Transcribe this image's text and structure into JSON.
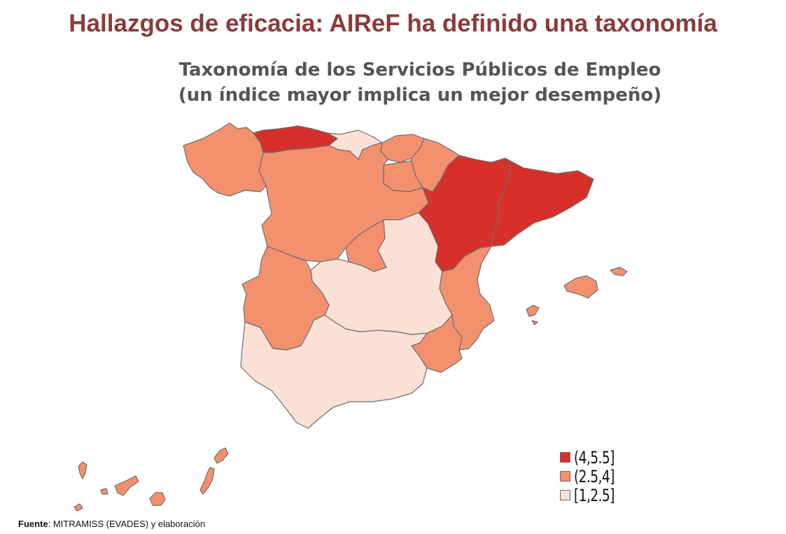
{
  "slide": {
    "title": "Hallazgos de eficacia: AIReF ha definido una taxonomía"
  },
  "map": {
    "title_line1": "Taxonomía de los Servicios Públicos de Empleo",
    "title_line2": "(un índice mayor implica un mejor desempeño)",
    "colors": {
      "high": "#d7302a",
      "mid": "#f3916e",
      "low": "#fbe0d6"
    },
    "regions": [
      {
        "name": "Galicia",
        "class": "mid"
      },
      {
        "name": "Asturias",
        "class": "high"
      },
      {
        "name": "Cantabria",
        "class": "low"
      },
      {
        "name": "País Vasco",
        "class": "mid"
      },
      {
        "name": "Navarra",
        "class": "mid"
      },
      {
        "name": "La Rioja",
        "class": "mid"
      },
      {
        "name": "Aragón",
        "class": "high"
      },
      {
        "name": "Cataluña",
        "class": "high"
      },
      {
        "name": "Castilla y León",
        "class": "mid"
      },
      {
        "name": "Madrid",
        "class": "mid"
      },
      {
        "name": "Castilla-La Mancha",
        "class": "low"
      },
      {
        "name": "Extremadura",
        "class": "mid"
      },
      {
        "name": "Comunidad Valenciana",
        "class": "mid"
      },
      {
        "name": "Región de Murcia",
        "class": "mid"
      },
      {
        "name": "Andalucía",
        "class": "low"
      },
      {
        "name": "Illes Balears",
        "class": "mid"
      },
      {
        "name": "Canarias",
        "class": "mid"
      }
    ]
  },
  "legend": {
    "items": [
      {
        "label": "(4,5.5]",
        "class": "high"
      },
      {
        "label": "(2.5,4]",
        "class": "mid"
      },
      {
        "label": "[1,2.5]",
        "class": "low"
      }
    ]
  },
  "source": {
    "label": "Fuente",
    "text": ": MITRAMISS (EVADES) y elaboración"
  }
}
